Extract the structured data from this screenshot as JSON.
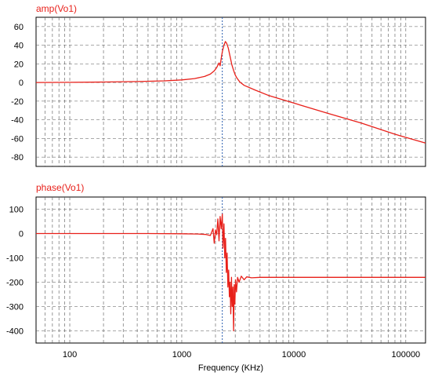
{
  "chart_data": [
    {
      "type": "line",
      "title": "amp(Vo1)",
      "xlabel": "",
      "ylabel": "",
      "x_scale": "log",
      "xlim": [
        50,
        150000
      ],
      "ylim": [
        -90,
        70
      ],
      "yticks": [
        60,
        40,
        20,
        0,
        -20,
        -40,
        -60,
        -80
      ],
      "grid": true,
      "marker_x": 2300,
      "series": [
        {
          "color": "#e8201a",
          "points": [
            [
              50,
              0
            ],
            [
              100,
              0.2
            ],
            [
              200,
              0.5
            ],
            [
              400,
              1.0
            ],
            [
              700,
              1.8
            ],
            [
              1000,
              2.8
            ],
            [
              1300,
              4.2
            ],
            [
              1600,
              6.5
            ],
            [
              1800,
              9.0
            ],
            [
              1950,
              12.5
            ],
            [
              2050,
              16.0
            ],
            [
              2150,
              21.0
            ],
            [
              2200,
              18.0
            ],
            [
              2250,
              26.0
            ],
            [
              2300,
              33.0
            ],
            [
              2380,
              40.0
            ],
            [
              2450,
              44.0
            ],
            [
              2520,
              42.0
            ],
            [
              2600,
              37.0
            ],
            [
              2700,
              28.0
            ],
            [
              2800,
              19.0
            ],
            [
              2900,
              13.0
            ],
            [
              3000,
              8.0
            ],
            [
              3100,
              5.0
            ],
            [
              3300,
              0.5
            ],
            [
              3600,
              -3.0
            ],
            [
              4500,
              -8.0
            ],
            [
              6000,
              -14.0
            ],
            [
              10000,
              -22.0
            ],
            [
              20000,
              -33.0
            ],
            [
              40000,
              -43.5
            ],
            [
              80000,
              -55.5
            ],
            [
              150000,
              -65.0
            ]
          ]
        }
      ]
    },
    {
      "type": "line",
      "title": "phase(Vo1)",
      "xlabel": "Frequency (KHz)",
      "ylabel": "",
      "x_scale": "log",
      "xlim": [
        50,
        150000
      ],
      "ylim": [
        -450,
        150
      ],
      "xticks": [
        100,
        1000,
        10000,
        100000
      ],
      "xtick_labels": [
        "100",
        "1000",
        "10000",
        "100000"
      ],
      "yticks": [
        100,
        0,
        -100,
        -200,
        -300,
        -400
      ],
      "grid": true,
      "marker_x": 2300,
      "series": [
        {
          "color": "#e8201a",
          "points": [
            [
              50,
              0
            ],
            [
              500,
              0
            ],
            [
              1000,
              -1
            ],
            [
              1400,
              -2
            ],
            [
              1650,
              -4
            ],
            [
              1800,
              -8
            ],
            [
              1900,
              20
            ],
            [
              1950,
              -40
            ],
            [
              2000,
              15
            ],
            [
              2050,
              -5
            ],
            [
              2100,
              60
            ],
            [
              2150,
              -30
            ],
            [
              2200,
              70
            ],
            [
              2250,
              20
            ],
            [
              2300,
              80
            ],
            [
              2330,
              -60
            ],
            [
              2380,
              40
            ],
            [
              2420,
              -100
            ],
            [
              2460,
              -20
            ],
            [
              2500,
              -160
            ],
            [
              2540,
              -80
            ],
            [
              2580,
              -220
            ],
            [
              2620,
              -150
            ],
            [
              2660,
              -260
            ],
            [
              2700,
              -200
            ],
            [
              2740,
              -330
            ],
            [
              2780,
              -180
            ],
            [
              2820,
              -300
            ],
            [
              2860,
              -220
            ],
            [
              2900,
              -400
            ],
            [
              2940,
              -210
            ],
            [
              2980,
              -290
            ],
            [
              3020,
              -190
            ],
            [
              3080,
              -240
            ],
            [
              3150,
              -180
            ],
            [
              3250,
              -200
            ],
            [
              3400,
              -175
            ],
            [
              3600,
              -190
            ],
            [
              3800,
              -178
            ],
            [
              4200,
              -182
            ],
            [
              5000,
              -180
            ],
            [
              10000,
              -180
            ],
            [
              50000,
              -180
            ],
            [
              150000,
              -180
            ]
          ]
        }
      ]
    }
  ]
}
